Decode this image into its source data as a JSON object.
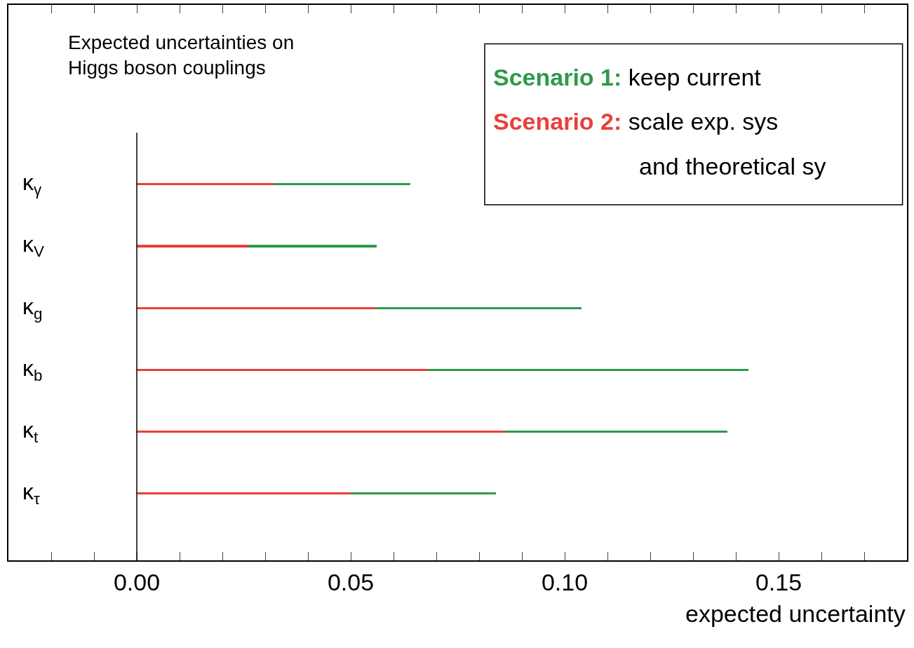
{
  "chart_data": {
    "type": "bar",
    "orientation": "horizontal",
    "stacked": true,
    "title": "Expected uncertainties on\nHiggs boson couplings",
    "xlabel": "expected uncertainty",
    "categories": [
      "κ$_{γ}$",
      "κ$_{V}$",
      "κ$_{g}$",
      "κ$_{b}$",
      "κ$_{t}$",
      "κ$_{τ}$"
    ],
    "series": [
      {
        "name": "Scenario 2:",
        "color": "#e8403a",
        "values": [
          0.032,
          0.026,
          0.056,
          0.068,
          0.086,
          0.05
        ]
      },
      {
        "name": "Scenario 1:",
        "color": "#2e9a4a",
        "values": [
          0.032,
          0.03,
          0.048,
          0.075,
          0.052,
          0.034
        ]
      }
    ],
    "annotations": [
      "keep current",
      "scale exp. sys",
      "and theoretical sy"
    ],
    "xlim": [
      -0.03,
      0.18
    ],
    "xticks": [
      {
        "value": -0.03,
        "label": null
      },
      {
        "value": -0.02,
        "label": null
      },
      {
        "value": -0.01,
        "label": null
      },
      "0.00",
      {
        "value": 0.01,
        "label": null
      },
      {
        "value": 0.02,
        "label": null
      },
      {
        "value": 0.03,
        "label": null
      },
      {
        "value": 0.04,
        "label": null
      },
      {
        "value": 0.05,
        "label": "0.05"
      },
      {
        "value": 0.06,
        "label": null
      },
      {
        "value": 0.07,
        "label": null
      },
      {
        "value": 0.08,
        "label": null
      },
      {
        "value": 0.09,
        "label": null
      },
      {
        "value": 0.1,
        "label": "0.10"
      },
      {
        "value": 0.11,
        "label": null
      },
      {
        "value": 0.12,
        "label": null
      },
      {
        "value": 0.13,
        "label": null
      },
      {
        "value": 0.14,
        "label": null
      },
      {
        "value": 0.15,
        "label": "0.15"
      },
      {
        "value": 0.16,
        "label": null
      },
      {
        "value": 0.17,
        "label": null
      }
    ],
    "ref_lines": [
      {
        "axis": "x",
        "value": 0,
        "color": "#000000"
      }
    ],
    "legend": false
  }
}
